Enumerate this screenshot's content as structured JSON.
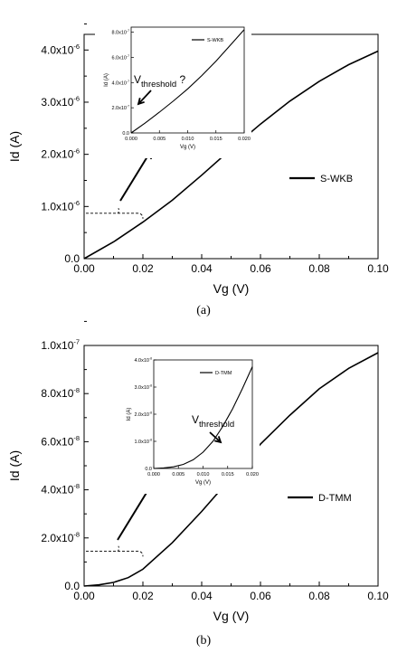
{
  "chart_data": [
    {
      "panel": "(a)",
      "type": "line",
      "xlabel": "Vg (V)",
      "ylabel": "Id (A)",
      "xlim": [
        0,
        0.1
      ],
      "ylim": [
        0,
        4.3e-06
      ],
      "x_ticks": [
        "0.00",
        "0.02",
        "0.04",
        "0.06",
        "0.08",
        "0.10"
      ],
      "y_ticks": [
        "0.0",
        "1.0x10",
        "2.0x10",
        "3.0x10",
        "4.0x10"
      ],
      "y_tick_exponent": "-6",
      "legend": "S-WKB",
      "legend_placement": "right",
      "series": [
        {
          "name": "S-WKB",
          "x": [
            0,
            0.01,
            0.02,
            0.03,
            0.04,
            0.05,
            0.06,
            0.07,
            0.08,
            0.09,
            0.1
          ],
          "y": [
            0,
            3.2e-07,
            7e-07,
            1.12e-06,
            1.6e-06,
            2.1e-06,
            2.58e-06,
            3.02e-06,
            3.4e-06,
            3.72e-06,
            3.98e-06
          ]
        }
      ],
      "annotations": {
        "bracket_value": 8.7e-07
      },
      "inset": {
        "type": "line",
        "xlabel": "Vg (V)",
        "ylabel": "Id (A)",
        "xlim": [
          0,
          0.02
        ],
        "ylim": [
          0,
          8.4e-07
        ],
        "x_ticks": [
          "0.000",
          "0.005",
          "0.010",
          "0.015",
          "0.020"
        ],
        "y_ticks": [
          "0.0",
          "2.0x10",
          "4.0x10",
          "6.0x10",
          "8.0x10"
        ],
        "y_tick_exponent": "-7",
        "legend": "S-WKB",
        "annotation": "V",
        "annotation_sub": "threshold",
        "annotation_suffix": " ?",
        "series": [
          {
            "name": "S-WKB",
            "x": [
              0,
              0.0025,
              0.005,
              0.0075,
              0.01,
              0.0125,
              0.015,
              0.0175,
              0.02
            ],
            "y": [
              0,
              8e-08,
              1.65e-07,
              2.55e-07,
              3.5e-07,
              4.55e-07,
              5.7e-07,
              6.95e-07,
              8.2e-07
            ]
          }
        ]
      }
    },
    {
      "panel": "(b)",
      "type": "line",
      "xlabel": "Vg (V)",
      "ylabel": "Id (A)",
      "xlim": [
        0,
        0.1
      ],
      "ylim": [
        0,
        1e-07
      ],
      "x_ticks": [
        "0.00",
        "0.02",
        "0.04",
        "0.06",
        "0.08",
        "0.10"
      ],
      "y_ticks": [
        "0.0",
        "2.0x10",
        "4.0x10",
        "6.0x10",
        "8.0x10",
        "1.0x10"
      ],
      "y_tick_exponents": [
        "",
        "-8",
        "-8",
        "-8",
        "-8",
        "-7"
      ],
      "legend": "D-TMM",
      "legend_placement": "right",
      "series": [
        {
          "name": "D-TMM",
          "x": [
            0,
            0.005,
            0.01,
            0.015,
            0.02,
            0.03,
            0.04,
            0.05,
            0.06,
            0.07,
            0.08,
            0.09,
            0.1
          ],
          "y": [
            0,
            5e-10,
            1.5e-09,
            3.5e-09,
            7e-09,
            1.8e-08,
            3.1e-08,
            4.5e-08,
            5.9e-08,
            7.1e-08,
            8.2e-08,
            9.05e-08,
            9.7e-08
          ]
        }
      ],
      "annotations": {
        "bracket_value": 1.45e-08
      },
      "inset": {
        "type": "line",
        "xlabel": "Vg (V)",
        "ylabel": "Id (A)",
        "xlim": [
          0,
          0.02
        ],
        "ylim": [
          0,
          4e-08
        ],
        "x_ticks": [
          "0.000",
          "0.005",
          "0.010",
          "0.015",
          "0.020"
        ],
        "y_ticks": [
          "0.0",
          "1.0x10",
          "2.0x10",
          "3.0x10",
          "4.0x10"
        ],
        "y_tick_exponent": "-8",
        "legend": "D-TMM",
        "annotation": "V",
        "annotation_sub": "threshold",
        "annotation_suffix": "",
        "series": [
          {
            "name": "D-TMM",
            "x": [
              0,
              0.002,
              0.004,
              0.006,
              0.008,
              0.01,
              0.012,
              0.014,
              0.016,
              0.018,
              0.02
            ],
            "y": [
              0,
              2e-10,
              6e-10,
              1.5e-09,
              3.2e-09,
              6e-09,
              1e-08,
              1.55e-08,
              2.2e-08,
              2.95e-08,
              3.75e-08
            ]
          }
        ]
      }
    }
  ]
}
